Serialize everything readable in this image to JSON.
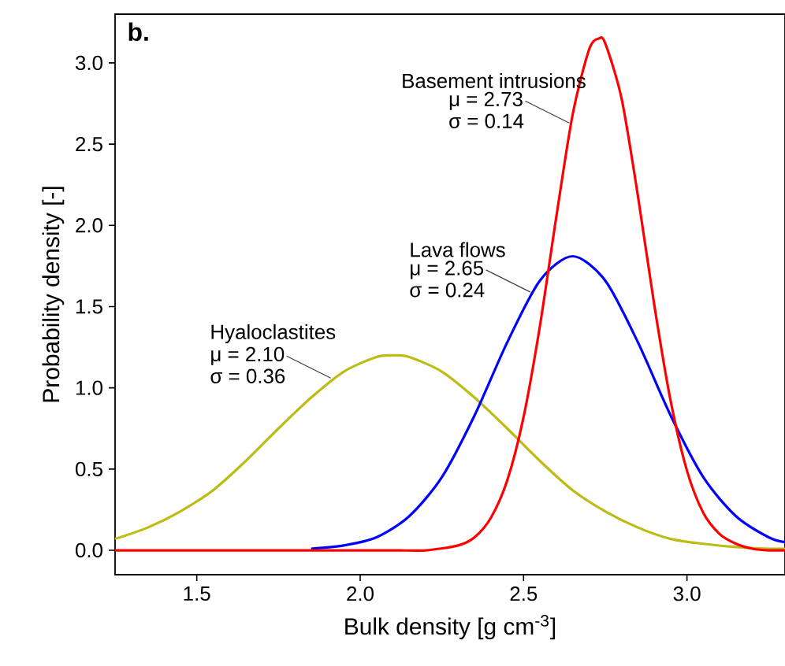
{
  "chart_data": {
    "type": "line",
    "title": "b.",
    "xlabel": "Bulk density [g cm$^{-3}$]",
    "ylabel": "Probability density [-]",
    "xlim": [
      1.25,
      3.3
    ],
    "ylim": [
      -0.15,
      3.3
    ],
    "xticks": [
      {
        "value": 1.5,
        "label": "1.5"
      },
      {
        "value": 2,
        "label": "2.0"
      },
      {
        "value": 2.5,
        "label": "2.5"
      },
      {
        "value": 3,
        "label": "3.0"
      }
    ],
    "yticks": [
      {
        "value": 0,
        "label": "0.0"
      },
      {
        "value": 0.5,
        "label": "0.5"
      },
      {
        "value": 1,
        "label": "1.0"
      },
      {
        "value": 1.5,
        "label": "1.5"
      },
      {
        "value": 2,
        "label": "2.0"
      },
      {
        "value": 2.5,
        "label": "2.5"
      },
      {
        "value": 3,
        "label": "3.0"
      }
    ],
    "grid": false,
    "legend": false,
    "marker": "none",
    "line_style": "solid",
    "series": [
      {
        "name": "Hyaloclastites",
        "color": "#bcbc14",
        "x": [
          1.25,
          1.35,
          1.45,
          1.55,
          1.65,
          1.75,
          1.85,
          1.95,
          2.05,
          2.1,
          2.15,
          2.25,
          2.35,
          2.45,
          2.55,
          2.65,
          2.75,
          2.85,
          2.95,
          3.05,
          3.15,
          3.25,
          3.3
        ],
        "values": [
          0.07,
          0.14,
          0.24,
          0.37,
          0.55,
          0.75,
          0.94,
          1.1,
          1.19,
          1.2,
          1.19,
          1.1,
          0.94,
          0.75,
          0.55,
          0.37,
          0.24,
          0.14,
          0.07,
          0.04,
          0.02,
          0.01,
          0.01
        ]
      },
      {
        "name": "Lava flows",
        "color": "#0000ff",
        "x": [
          1.85,
          1.95,
          2.05,
          2.15,
          2.25,
          2.35,
          2.45,
          2.55,
          2.65,
          2.75,
          2.85,
          2.95,
          3.05,
          3.15,
          3.25,
          3.3
        ],
        "values": [
          0.01,
          0.03,
          0.08,
          0.21,
          0.45,
          0.83,
          1.28,
          1.66,
          1.81,
          1.66,
          1.28,
          0.83,
          0.45,
          0.21,
          0.08,
          0.05
        ]
      },
      {
        "name": "Basement intrusions",
        "color": "#ff0000",
        "x": [
          1.25,
          1.6,
          1.9,
          2.1,
          2.2,
          2.3,
          2.35,
          2.4,
          2.45,
          2.5,
          2.55,
          2.6,
          2.65,
          2.7,
          2.73,
          2.75,
          2.8,
          2.85,
          2.9,
          2.95,
          3.0,
          3.05,
          3.1,
          3.15,
          3.2,
          3.25,
          3.3
        ],
        "values": [
          0,
          0,
          0,
          0,
          0,
          0.03,
          0.08,
          0.2,
          0.43,
          0.82,
          1.38,
          2.05,
          2.68,
          3.08,
          3.15,
          3.12,
          2.78,
          2.18,
          1.51,
          0.92,
          0.49,
          0.23,
          0.1,
          0.04,
          0.01,
          0,
          0
        ]
      }
    ],
    "annotations": [
      {
        "text": "μ = 2.10",
        "x": 1.91,
        "y": 1.06
      },
      "σ = 0.36",
      {
        "text": "μ = 2.65",
        "x": 2.52,
        "y": 1.59
      },
      "σ = 0.24",
      {
        "text": "μ = 2.73",
        "x": 2.64,
        "y": 2.63
      },
      "σ = 0.14"
    ]
  }
}
